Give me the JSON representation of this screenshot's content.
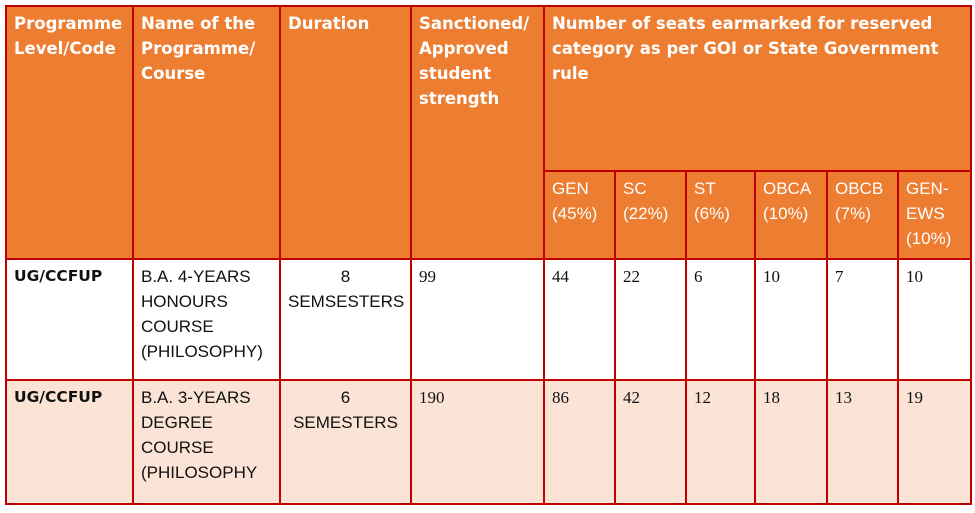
{
  "table": {
    "headers": {
      "level_code": "Programme\nLevel/Code",
      "name": "Name of the\nProgramme/\nCourse",
      "duration": "Duration",
      "strength": "Sanctioned/\nApproved\nstudent\nstrength",
      "seats": "Number of seats earmarked for reserved\ncategory as per GOI or State Government rule"
    },
    "categories": [
      "GEN\n(45%)",
      "SC\n(22%)",
      "ST\n(6%)",
      "OBCA\n(10%)",
      "OBCB\n(7%)",
      "GEN-\nEWS\n(10%)"
    ],
    "rows": [
      {
        "level_code": "UG/CCFUP",
        "name": "B.A. 4-YEARS\nHONOURS\nCOURSE\n(PHILOSOPHY)",
        "duration": "8\nSEMSESTERS",
        "strength": "99",
        "seats": [
          "44",
          "22",
          "6",
          "10",
          "7",
          "10"
        ]
      },
      {
        "level_code": "UG/CCFUP",
        "name": "B.A. 3-YEARS\nDEGREE\nCOURSE\n(PHILOSOPHY",
        "duration": "6\nSEMESTERS",
        "strength": "190",
        "seats": [
          "86",
          "42",
          "12",
          "18",
          "13",
          "19"
        ]
      }
    ]
  }
}
